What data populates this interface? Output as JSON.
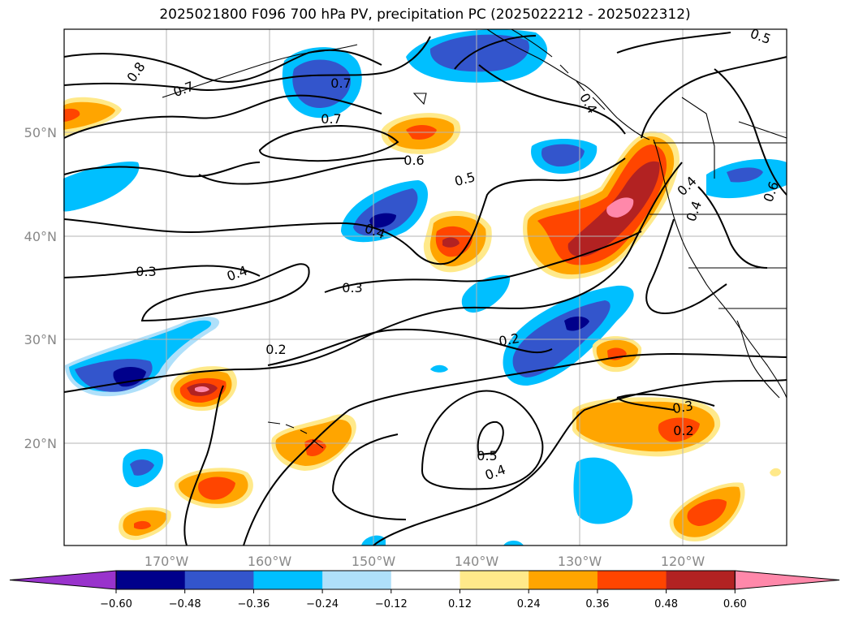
{
  "title": "2025021800 F096 700 hPa PV, precipitation PC (2025022212 - 2025022312)",
  "lat_labels": [
    "50°N",
    "40°N",
    "30°N",
    "20°N"
  ],
  "lon_labels": [
    "170°W",
    "160°W",
    "150°W",
    "140°W",
    "130°W",
    "120°W"
  ],
  "contour_labels": [
    "0.8",
    "0.7",
    "0.7",
    "0.7",
    "0.6",
    "0.5",
    "0.5",
    "0.4",
    "0.4",
    "0.4",
    "0.3",
    "0.3",
    "0.3",
    "0.2",
    "0.2",
    "0.2",
    "0.5",
    "0.4",
    "0.6",
    "0.4",
    "0.4"
  ],
  "colorbar": {
    "ticks": [
      "−0.60",
      "−0.48",
      "−0.36",
      "−0.24",
      "−0.12",
      "0.12",
      "0.24",
      "0.36",
      "0.48",
      "0.60"
    ],
    "colors": [
      "#9933cc",
      "#00008b",
      "#3355cc",
      "#00bfff",
      "#afe0fa",
      "#ffffff",
      "#ffe98a",
      "#ffa500",
      "#ff4500",
      "#b22222",
      "#ff88aa"
    ]
  }
}
